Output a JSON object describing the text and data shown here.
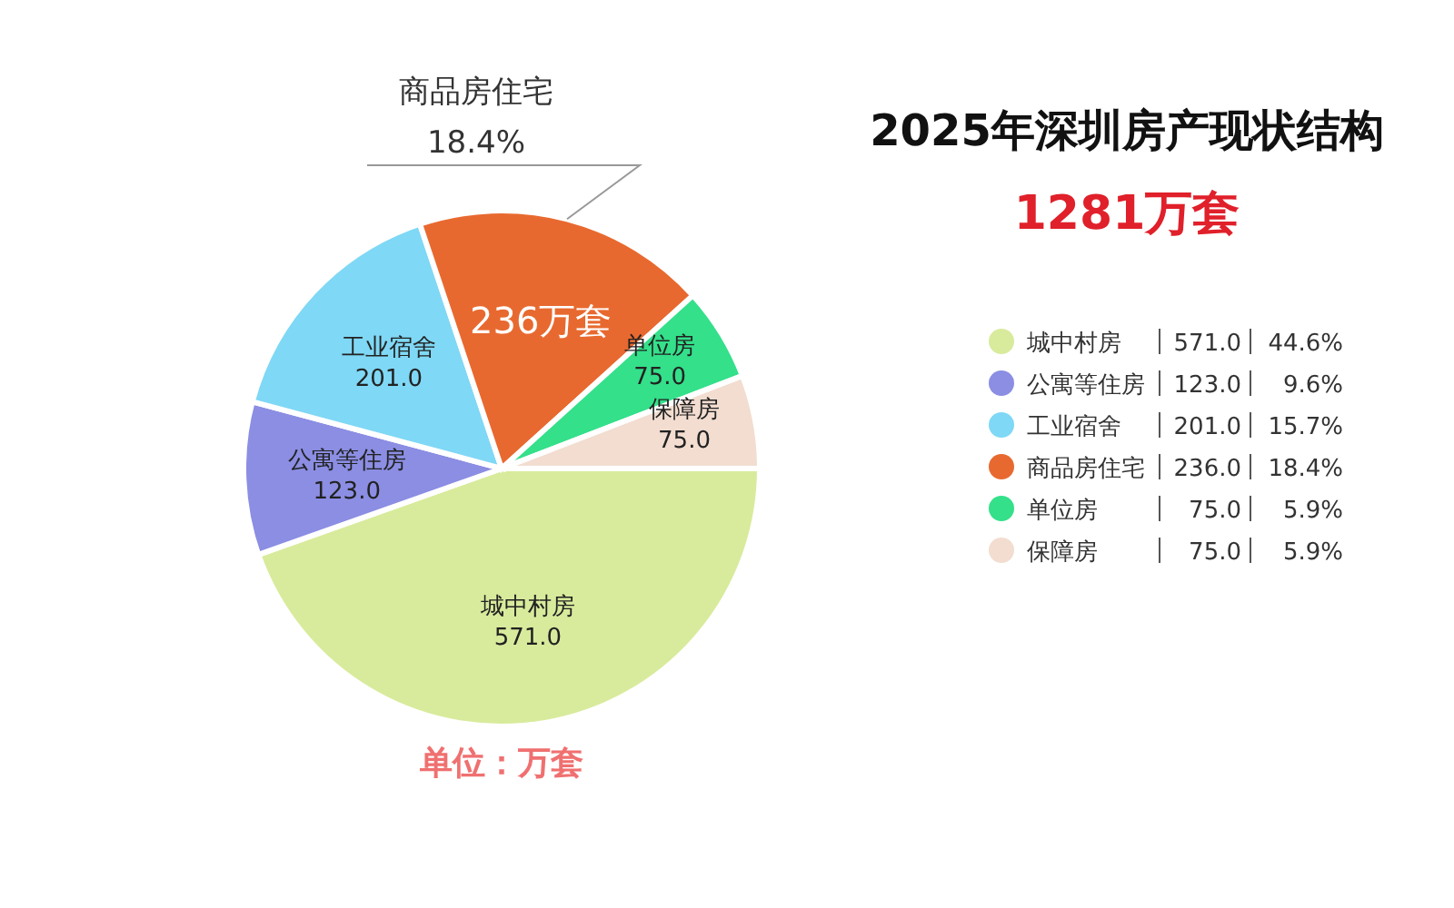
{
  "chart_data": {
    "type": "pie",
    "title": "2025年深圳房产现状结构",
    "subtitle": "1281万套",
    "categories": [
      "城中村房",
      "公寓等住房",
      "工业宿舍",
      "商品房住宅",
      "单位房",
      "保障房"
    ],
    "values": [
      571,
      123,
      201,
      236,
      75,
      75
    ],
    "value_labels": [
      "571.0",
      "123.0",
      "201.0",
      "236.0",
      "75.0",
      "75.0"
    ],
    "colors": [
      "#d8eb9c",
      "#8b8ee3",
      "#7fd8f5",
      "#e8692f",
      "#34e08a",
      "#f2ddd0"
    ],
    "legend": "right",
    "annotations": [
      "单位：万套",
      {
        "text": "44.6%",
        "x": "城中村房"
      },
      {
        "text": "9.6%",
        "x": "公寓等住房"
      },
      {
        "text": "15.7%",
        "x": "工业宿舍"
      },
      {
        "text": "18.4%",
        "x": "商品房住宅"
      },
      {
        "text": "18.4%",
        "x": "商品房住宅"
      },
      {
        "text": "236万套",
        "x": "商品房住宅"
      },
      {
        "text": "5.9%",
        "x": "单位房"
      },
      {
        "text": "5.9%",
        "x": "保障房"
      }
    ]
  }
}
